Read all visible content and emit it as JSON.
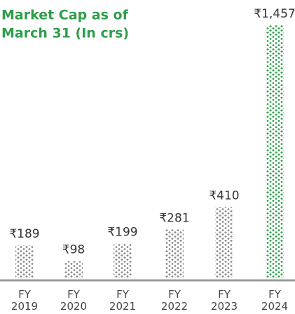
{
  "chart_data": {
    "type": "bar",
    "title": [
      "Market Cap as of",
      "March 31 (In crs)"
    ],
    "categories": [
      "FY 2019",
      "FY 2020",
      "FY 2021",
      "FY 2022",
      "FY 2023",
      "FY 2024"
    ],
    "values": [
      189,
      98,
      199,
      281,
      410,
      1457
    ],
    "value_labels": [
      "₹189",
      "₹98",
      "₹199",
      "₹281",
      "₹410",
      "₹1,457"
    ],
    "colors": [
      "#8a8a8a",
      "#8a8a8a",
      "#8a8a8a",
      "#8a8a8a",
      "#8a8a8a",
      "#2e9e4a"
    ]
  }
}
